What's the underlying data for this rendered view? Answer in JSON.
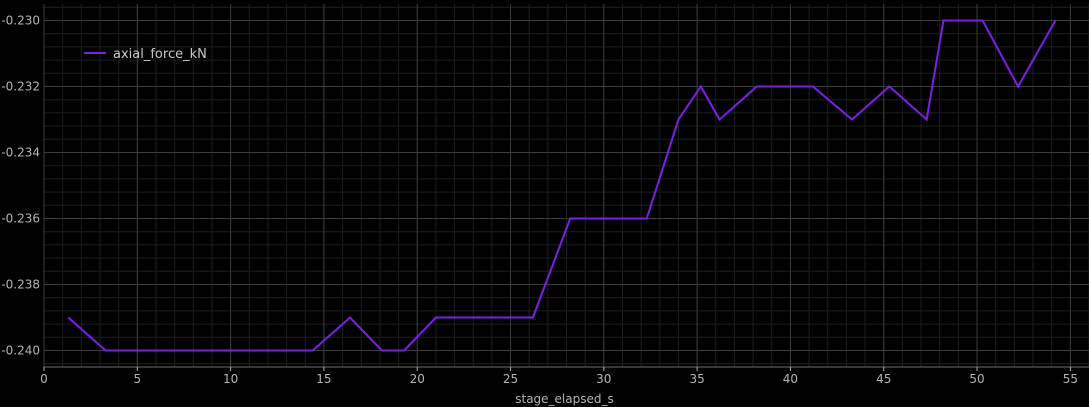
{
  "chart_data": {
    "type": "line",
    "xlabel": "stage_elapsed_s",
    "ylabel": "",
    "xlim": [
      0,
      56
    ],
    "ylim": [
      -0.2405,
      -0.2295
    ],
    "xticks": [
      0,
      5,
      10,
      15,
      20,
      25,
      30,
      35,
      40,
      45,
      50,
      55
    ],
    "yticks": [
      -0.24,
      -0.238,
      -0.236,
      -0.234,
      -0.232,
      -0.23
    ],
    "ytick_labels": [
      "-0.240",
      "-0.238",
      "-0.236",
      "-0.234",
      "-0.232",
      "-0.230"
    ],
    "grid": true,
    "minor_grid": true,
    "legend_position": "top-left",
    "series": [
      {
        "name": "axial_force_kN",
        "color": "#7b1fe8",
        "x": [
          1.3,
          3.3,
          5.2,
          7.2,
          9.2,
          11.3,
          13.3,
          14.4,
          16.4,
          18.1,
          19.3,
          21.0,
          22.9,
          25.0,
          26.2,
          28.2,
          30.0,
          32.3,
          34.0,
          35.2,
          36.2,
          38.2,
          40.1,
          41.2,
          43.3,
          45.3,
          47.3,
          48.2,
          50.3,
          52.2,
          54.2
        ],
        "y": [
          -0.239,
          -0.24,
          -0.24,
          -0.24,
          -0.24,
          -0.24,
          -0.24,
          -0.24,
          -0.239,
          -0.24,
          -0.24,
          -0.239,
          -0.239,
          -0.239,
          -0.239,
          -0.236,
          -0.236,
          -0.236,
          -0.233,
          -0.232,
          -0.233,
          -0.232,
          -0.232,
          -0.232,
          -0.233,
          -0.232,
          -0.233,
          -0.23,
          -0.23,
          -0.232,
          -0.23
        ]
      }
    ]
  }
}
